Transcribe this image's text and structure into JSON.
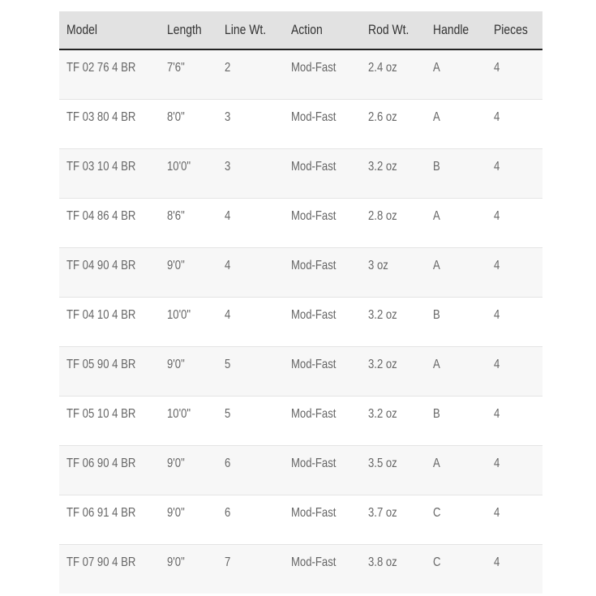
{
  "table": {
    "headers": [
      "Model",
      "Length",
      "Line Wt.",
      "Action",
      "Rod Wt.",
      "Handle",
      "Pieces"
    ],
    "rows": [
      [
        "TF 02 76 4 BR",
        "7'6\"",
        "2",
        "Mod-Fast",
        "2.4 oz",
        "A",
        "4"
      ],
      [
        "TF 03 80 4 BR",
        "8'0\"",
        "3",
        "Mod-Fast",
        "2.6 oz",
        "A",
        "4"
      ],
      [
        "TF 03 10 4 BR",
        "10'0\"",
        "3",
        "Mod-Fast",
        "3.2 oz",
        "B",
        "4"
      ],
      [
        "TF 04 86 4 BR",
        "8'6\"",
        "4",
        "Mod-Fast",
        "2.8 oz",
        "A",
        "4"
      ],
      [
        "TF 04 90 4 BR",
        "9'0\"",
        "4",
        "Mod-Fast",
        "3 oz",
        "A",
        "4"
      ],
      [
        "TF 04 10 4 BR",
        "10'0\"",
        "4",
        "Mod-Fast",
        "3.2 oz",
        "B",
        "4"
      ],
      [
        "TF 05 90 4 BR",
        "9'0\"",
        "5",
        "Mod-Fast",
        "3.2 oz",
        "A",
        "4"
      ],
      [
        "TF 05 10 4 BR",
        "10'0\"",
        "5",
        "Mod-Fast",
        "3.2 oz",
        "B",
        "4"
      ],
      [
        "TF 06 90 4 BR",
        "9'0\"",
        "6",
        "Mod-Fast",
        "3.5 oz",
        "A",
        "4"
      ],
      [
        "TF 06 91 4 BR",
        "9'0\"",
        "6",
        "Mod-Fast",
        "3.7 oz",
        "C",
        "4"
      ],
      [
        "TF 07 90 4 BR",
        "9'0\"",
        "7",
        "Mod-Fast",
        "3.8 oz",
        "C",
        "4"
      ]
    ]
  }
}
